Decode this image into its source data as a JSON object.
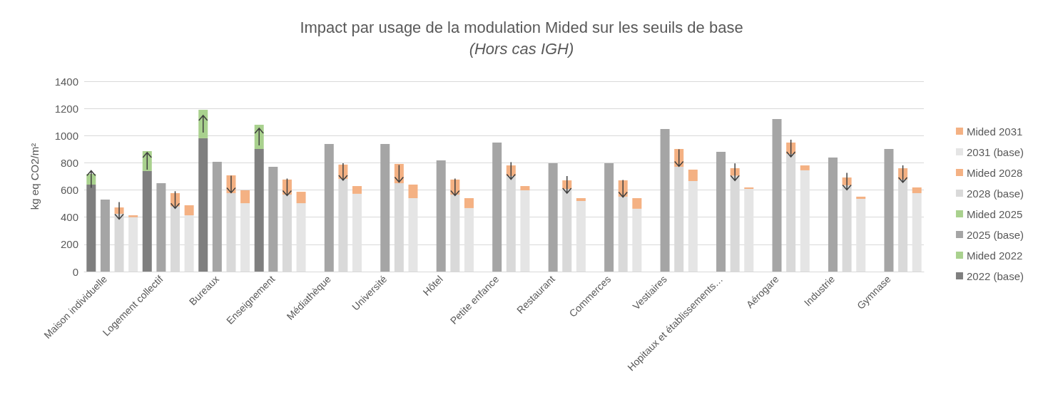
{
  "chart_data": {
    "type": "bar",
    "title": "Impact par usage de la modulation Mided sur les seuils de base",
    "subtitle": "(Hors cas IGH)",
    "ylabel": "kg eq CO2/m²",
    "categories": [
      null,
      "Maison individuelle",
      null,
      null,
      null,
      "Logement collectif",
      null,
      null,
      null,
      "Bureaux",
      null,
      null,
      null,
      "Enseignement",
      null,
      null,
      null,
      "Médiathèque",
      null,
      null,
      null,
      "Université",
      null,
      null,
      null,
      "Hôtel",
      null,
      null,
      null,
      "Petite enfance",
      null,
      null,
      null,
      "Restaurant",
      null,
      null,
      null,
      "Commerces",
      null,
      null,
      null,
      "Vestiaires",
      null,
      null,
      null,
      "Hopitaux et établissements…",
      null,
      null,
      null,
      "Aérogare",
      null,
      null,
      null,
      "Industrie",
      null,
      null,
      null,
      "Gymnase",
      null,
      null
    ],
    "stacked": true,
    "ylim": [
      0,
      1400
    ],
    "yticks": [
      0,
      200,
      400,
      600,
      800,
      1000,
      1200,
      1400
    ],
    "grid": "y",
    "legend": "right",
    "series": [
      {
        "name": "2022 (base)",
        "color": "#7f7f7f",
        "values": [
          640,
          null,
          null,
          null,
          740,
          null,
          null,
          null,
          981,
          null,
          null,
          null,
          902,
          null,
          null,
          null,
          null,
          null,
          null,
          null,
          null,
          null,
          null,
          null,
          null,
          null,
          null,
          null,
          null,
          null,
          null,
          null,
          null,
          null,
          null,
          null,
          null,
          null,
          null,
          null,
          null,
          null,
          null,
          null,
          null,
          null,
          null,
          null,
          null,
          null,
          null,
          null,
          null,
          null,
          null,
          null,
          null,
          null,
          null,
          null
        ]
      },
      {
        "name": "Mided 2022",
        "color": "#a9d18e",
        "values": [
          78,
          null,
          null,
          null,
          146,
          null,
          null,
          null,
          209,
          null,
          null,
          null,
          178,
          null,
          null,
          null,
          null,
          null,
          null,
          null,
          null,
          null,
          null,
          null,
          null,
          null,
          null,
          null,
          null,
          null,
          null,
          null,
          null,
          null,
          null,
          null,
          null,
          null,
          null,
          null,
          null,
          null,
          null,
          null,
          null,
          null,
          null,
          null,
          null,
          null,
          null,
          null,
          null,
          null,
          null,
          null,
          null,
          null,
          null,
          null
        ]
      },
      {
        "name": "2025 (base)",
        "color": "#a5a5a5",
        "values": [
          null,
          530,
          null,
          null,
          null,
          650,
          null,
          null,
          null,
          808,
          null,
          null,
          null,
          771,
          null,
          null,
          null,
          939,
          null,
          null,
          null,
          939,
          null,
          null,
          null,
          818,
          null,
          null,
          null,
          949,
          null,
          null,
          null,
          797,
          null,
          null,
          null,
          797,
          null,
          null,
          null,
          1049,
          null,
          null,
          null,
          881,
          null,
          null,
          null,
          1122,
          null,
          null,
          null,
          839,
          null,
          null,
          null,
          902,
          null,
          null
        ]
      },
      {
        "name": "Mided 2025",
        "color": "#a9d18e",
        "values": [
          null,
          null,
          null,
          null,
          null,
          null,
          null,
          null,
          null,
          null,
          null,
          null,
          null,
          null,
          null,
          null,
          null,
          null,
          null,
          null,
          null,
          null,
          null,
          null,
          null,
          null,
          null,
          null,
          null,
          null,
          null,
          null,
          null,
          null,
          null,
          null,
          null,
          null,
          null,
          null,
          null,
          null,
          null,
          null,
          null,
          null,
          null,
          null,
          null,
          null,
          null,
          null,
          null,
          null,
          null,
          null,
          null,
          null,
          null,
          null
        ]
      },
      {
        "name": "2028 (base)",
        "color": "#d9d9d9",
        "values": [
          null,
          null,
          425,
          null,
          null,
          null,
          479,
          null,
          null,
          null,
          577,
          null,
          null,
          null,
          566,
          null,
          null,
          null,
          682,
          null,
          null,
          null,
          650,
          null,
          null,
          null,
          566,
          null,
          null,
          null,
          703,
          null,
          null,
          null,
          608,
          null,
          null,
          null,
          551,
          null,
          null,
          null,
          771,
          null,
          null,
          null,
          705,
          null,
          null,
          null,
          865,
          null,
          null,
          null,
          635,
          null,
          null,
          null,
          677,
          null
        ]
      },
      {
        "name": "Mided 2028",
        "color": "#f4b183",
        "values": [
          null,
          null,
          47,
          null,
          null,
          null,
          98,
          null,
          null,
          null,
          131,
          null,
          null,
          null,
          111,
          null,
          null,
          null,
          105,
          null,
          null,
          null,
          142,
          null,
          null,
          null,
          111,
          null,
          null,
          null,
          78,
          null,
          null,
          null,
          63,
          null,
          null,
          null,
          120,
          null,
          null,
          null,
          131,
          null,
          null,
          null,
          55,
          null,
          null,
          null,
          84,
          null,
          null,
          null,
          57,
          null,
          null,
          null,
          83,
          null
        ]
      },
      {
        "name": "2031 (base)",
        "color": "#e5e5e5",
        "values": [
          null,
          null,
          null,
          400,
          null,
          null,
          null,
          414,
          null,
          null,
          null,
          503,
          null,
          null,
          null,
          503,
          null,
          null,
          null,
          572,
          null,
          null,
          null,
          540,
          null,
          null,
          null,
          467,
          null,
          null,
          null,
          598,
          null,
          null,
          null,
          519,
          null,
          null,
          null,
          462,
          null,
          null,
          null,
          666,
          null,
          null,
          null,
          608,
          null,
          null,
          null,
          745,
          null,
          null,
          null,
          535,
          null,
          null,
          null,
          577
        ]
      },
      {
        "name": "Mided 2031",
        "color": "#f4b183",
        "values": [
          null,
          null,
          null,
          14,
          null,
          null,
          null,
          74,
          null,
          null,
          null,
          95,
          null,
          null,
          null,
          84,
          null,
          null,
          null,
          57,
          null,
          null,
          null,
          100,
          null,
          null,
          null,
          73,
          null,
          null,
          null,
          31,
          null,
          null,
          null,
          21,
          null,
          null,
          null,
          78,
          null,
          null,
          null,
          84,
          null,
          null,
          null,
          11,
          null,
          null,
          null,
          36,
          null,
          null,
          null,
          16,
          null,
          null,
          null,
          42
        ]
      }
    ]
  }
}
